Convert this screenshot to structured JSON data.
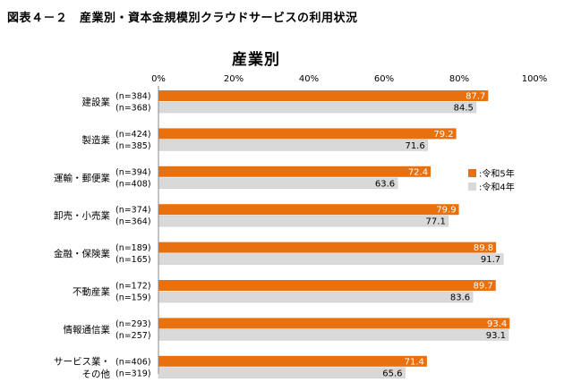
{
  "figure_title": "図表４－２　産業別・資本金規模別クラウドサービスの利用状況",
  "chart_data": {
    "type": "bar",
    "orientation": "horizontal",
    "title": "産業別",
    "xlabel": "",
    "ylabel": "",
    "xlim": [
      0,
      100
    ],
    "x_ticks": [
      "0%",
      "20%",
      "40%",
      "60%",
      "80%",
      "100%"
    ],
    "grid": false,
    "legend_position": "right",
    "categories": [
      {
        "label_lines": [
          "建設業"
        ],
        "n": [
          "(n=384)",
          "(n=368)"
        ]
      },
      {
        "label_lines": [
          "製造業"
        ],
        "n": [
          "(n=424)",
          "(n=385)"
        ]
      },
      {
        "label_lines": [
          "運輸・郵便業"
        ],
        "n": [
          "(n=394)",
          "(n=408)"
        ]
      },
      {
        "label_lines": [
          "卸売・小売業"
        ],
        "n": [
          "(n=374)",
          "(n=364)"
        ]
      },
      {
        "label_lines": [
          "金融・保険業"
        ],
        "n": [
          "(n=189)",
          "(n=165)"
        ]
      },
      {
        "label_lines": [
          "不動産業"
        ],
        "n": [
          "(n=172)",
          "(n=159)"
        ]
      },
      {
        "label_lines": [
          "情報通信業"
        ],
        "n": [
          "(n=293)",
          "(n=257)"
        ]
      },
      {
        "label_lines": [
          "サービス業・",
          "その他"
        ],
        "n": [
          "(n=406)",
          "(n=319)"
        ]
      }
    ],
    "series": [
      {
        "name": "令和5年",
        "legend_label": ":令和5年",
        "color": "#E8700F",
        "values": [
          87.7,
          79.2,
          72.4,
          79.9,
          89.8,
          89.7,
          93.4,
          71.4
        ],
        "labels": [
          "87.7",
          "79.2",
          "72.4",
          "79.9",
          "89.8",
          "89.7",
          "93.4",
          "71.4"
        ]
      },
      {
        "name": "令和4年",
        "legend_label": ":令和4年",
        "color": "#D9D9D9",
        "values": [
          84.5,
          71.6,
          63.6,
          77.1,
          91.7,
          83.6,
          93.1,
          65.6
        ],
        "labels": [
          "84.5",
          "71.6",
          "63.6",
          "77.1",
          "91.7",
          "83.6",
          "93.1",
          "65.6"
        ]
      }
    ]
  }
}
